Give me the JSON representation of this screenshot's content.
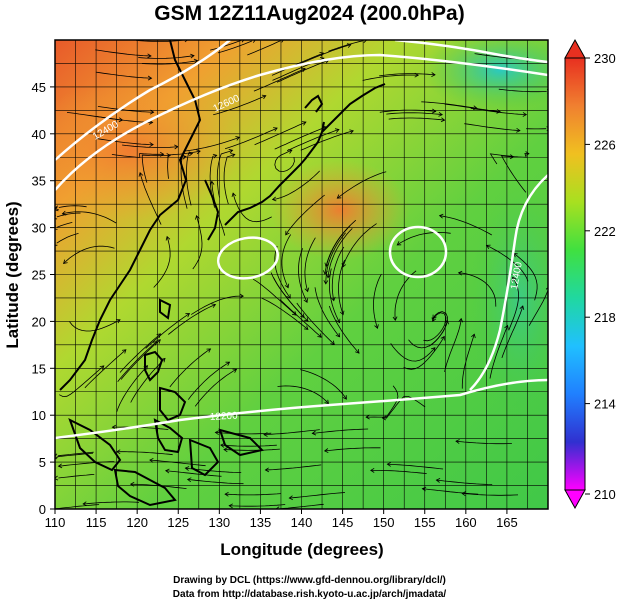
{
  "title": "GSM 12Z11Aug2024 (200.0hPa)",
  "xaxis": {
    "label": "Longitude (degrees)",
    "range": [
      110,
      170
    ],
    "ticks": [
      110,
      115,
      120,
      125,
      130,
      135,
      140,
      145,
      150,
      155,
      160,
      165
    ]
  },
  "yaxis": {
    "label": "Latitude  (degrees)",
    "range": [
      0,
      50
    ],
    "ticks": [
      0,
      5,
      10,
      15,
      20,
      25,
      30,
      35,
      40,
      45
    ]
  },
  "colorbar": {
    "labels": [
      230,
      226,
      222,
      218,
      214,
      210
    ],
    "range": [
      210,
      230
    ],
    "stops": [
      "#ff00ff",
      "#3030d0",
      "#2080ff",
      "#20c0ff",
      "#20d8a0",
      "#40e040",
      "#a8e020",
      "#f0c020",
      "#f08030",
      "#e83020"
    ]
  },
  "contour_labels": [
    "12400",
    "12600",
    "12400",
    "12200"
  ],
  "grid": true,
  "credits": [
    "Drawing by DCL (https://www.gfd-dennou.org/library/dcl/)",
    "Data from http://database.rish.kyoto-u.ac.jp/arch/jmadata/"
  ]
}
